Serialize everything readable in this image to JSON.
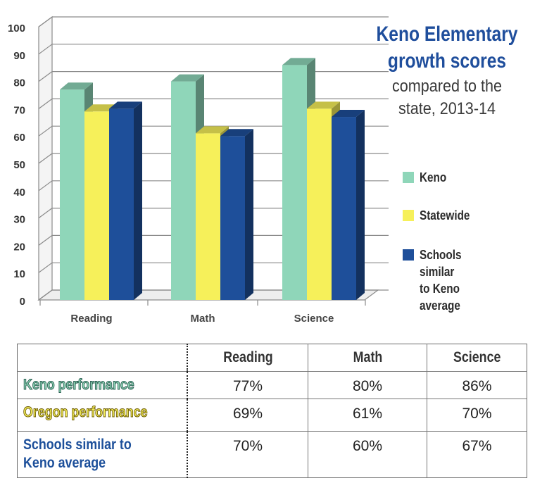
{
  "title": {
    "main": [
      "Keno Elementary",
      "growth scores"
    ],
    "sub": [
      "compared to the",
      "state, 2013-14"
    ]
  },
  "colors": {
    "keno": "#8fd6b9",
    "statewide": "#f6f05a",
    "similar": "#1e4f9a",
    "grid": "#8a8a8a"
  },
  "legend": [
    {
      "label": "Keno",
      "color": "#8fd6b9"
    },
    {
      "label": "Statewide",
      "color": "#f6f05a"
    },
    {
      "label": "Schools similar\nto Keno average",
      "color": "#1e4f9a"
    }
  ],
  "chart_data": {
    "type": "bar",
    "categories": [
      "Reading",
      "Math",
      "Science"
    ],
    "series": [
      {
        "name": "Keno",
        "values": [
          77,
          80,
          86
        ]
      },
      {
        "name": "Statewide",
        "values": [
          69,
          61,
          70
        ]
      },
      {
        "name": "Schools similar to Keno average",
        "values": [
          70,
          60,
          67
        ]
      }
    ],
    "yticks": [
      0,
      10,
      20,
      30,
      40,
      50,
      60,
      70,
      80,
      90,
      100
    ],
    "ylim": [
      0,
      100
    ],
    "grid": true,
    "legend_position": "right"
  },
  "table": {
    "headers": [
      "",
      "Reading",
      "Math",
      "Science"
    ],
    "rows": [
      {
        "label": "Keno performance",
        "values": [
          "77%",
          "80%",
          "86%"
        ]
      },
      {
        "label": "Oregon performance",
        "values": [
          "69%",
          "61%",
          "70%"
        ]
      },
      {
        "label": "Schools similar to\nKeno average",
        "values": [
          "70%",
          "60%",
          "67%"
        ]
      }
    ]
  }
}
